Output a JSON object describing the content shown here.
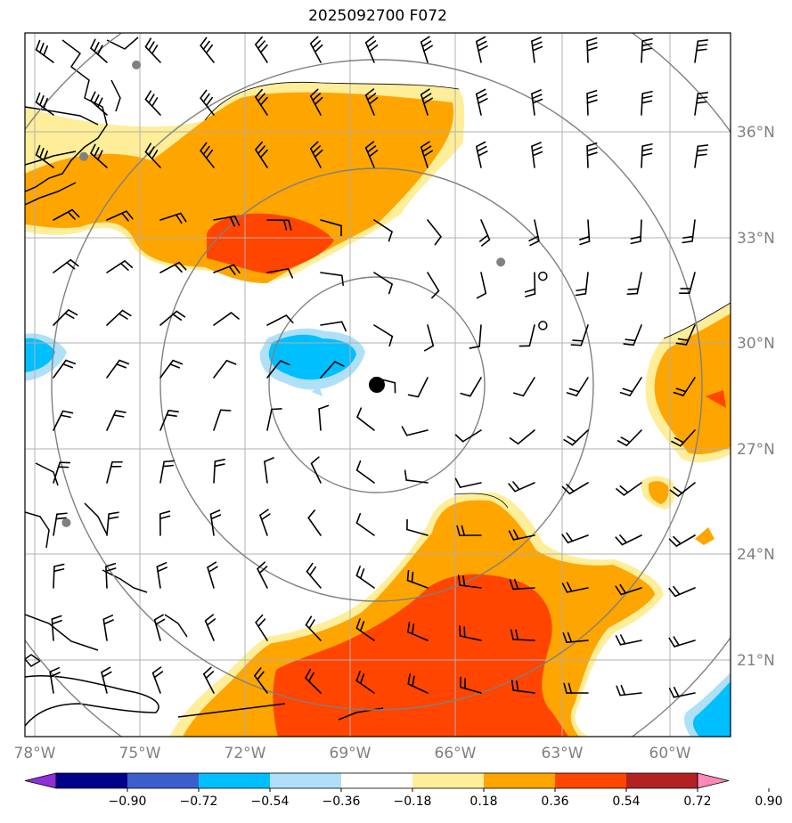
{
  "title": "2025092700 F072",
  "map": {
    "lon_range": [
      -78.5,
      -59.0
    ],
    "lat_range": [
      18.5,
      38.5
    ],
    "lat_ticks": [
      {
        "value": 36,
        "label": "36°N"
      },
      {
        "value": 33,
        "label": "33°N"
      },
      {
        "value": 30,
        "label": "30°N"
      },
      {
        "value": 27,
        "label": "27°N"
      },
      {
        "value": 24,
        "label": "24°N"
      },
      {
        "value": 21,
        "label": "21°N"
      }
    ],
    "lon_ticks": [
      {
        "value": -78,
        "label": "78°W"
      },
      {
        "value": -75,
        "label": "75°W"
      },
      {
        "value": -72,
        "label": "72°W"
      },
      {
        "value": -69,
        "label": "69°W"
      },
      {
        "value": -66,
        "label": "66°W"
      },
      {
        "value": -63,
        "label": "63°W"
      },
      {
        "value": -60,
        "label": "60°W"
      }
    ],
    "center": {
      "lon": -68.5,
      "lat": 28.8
    },
    "range_rings": 4,
    "grid_on": true,
    "station_markers": [
      {
        "lon": -75.1,
        "lat": 37.9,
        "type": "gray-dot"
      },
      {
        "lon": -76.6,
        "lat": 35.3,
        "type": "gray-dot"
      },
      {
        "lon": -64.7,
        "lat": 32.3,
        "type": "gray-dot"
      },
      {
        "lon": -77.1,
        "lat": 24.9,
        "type": "gray-dot"
      },
      {
        "lon": -63.5,
        "lat": 31.9,
        "type": "open-circle"
      },
      {
        "lon": -63.5,
        "lat": 30.5,
        "type": "open-circle"
      }
    ],
    "colors": {
      "grid": "#b0b0b0",
      "ring": "#808080",
      "coast": "#000000"
    }
  },
  "colorbar": {
    "levels": [
      "−0.90",
      "−0.72",
      "−0.54",
      "−0.36",
      "−0.18",
      "0.18",
      "0.36",
      "0.54",
      "0.72",
      "0.90"
    ],
    "colors": [
      "#8e2fd8",
      "#00008b",
      "#3a5fcd",
      "#00bfff",
      "#b0e0f8",
      "#ffffff",
      "#ffee99",
      "#ffa500",
      "#ff4500",
      "#b22222",
      "#ff88b8"
    ]
  }
}
